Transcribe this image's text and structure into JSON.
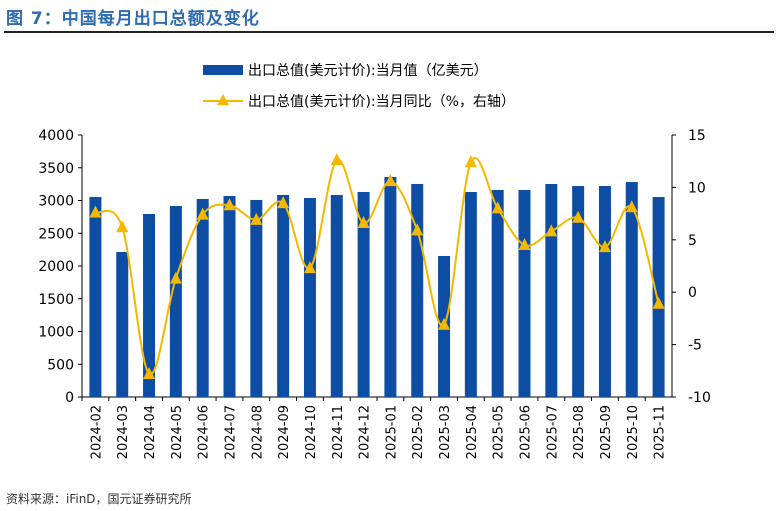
{
  "title": "图 7：中国每月出口总额及变化",
  "footer": "资料来源：iFinD，国元证券研究所",
  "chart_data": {
    "type": "bar+line",
    "categories": [
      "2024-02",
      "2024-03",
      "2024-04",
      "2024-05",
      "2024-06",
      "2024-07",
      "2024-08",
      "2024-09",
      "2024-10",
      "2024-11",
      "2024-12",
      "2025-01",
      "2025-02",
      "2025-03",
      "2025-04",
      "2025-05",
      "2025-06",
      "2025-07",
      "2025-08",
      "2025-09",
      "2025-10",
      "2025-11"
    ],
    "series": [
      {
        "name": "出口总值(美元计价):当月值（亿美元）",
        "type": "bar",
        "axis": "left",
        "color": "#0E4DA4",
        "values": [
          3053,
          2214,
          2794,
          2916,
          3023,
          3069,
          3008,
          3084,
          3038,
          3084,
          3130,
          3359,
          3252,
          2153,
          3130,
          3160,
          3160,
          3252,
          3221,
          3221,
          3282,
          3053
        ]
      },
      {
        "name": "出口总值(美元计价):当月同比（%，右轴）",
        "type": "line",
        "axis": "right",
        "color": "#F5B800",
        "marker": "triangle",
        "values": [
          7.6,
          6.2,
          -7.8,
          1.3,
          7.4,
          8.3,
          6.9,
          8.5,
          2.3,
          12.6,
          6.6,
          10.6,
          5.9,
          -3.1,
          12.4,
          8.0,
          4.5,
          5.8,
          7.1,
          4.3,
          8.1,
          -1.1
        ]
      }
    ],
    "left_axis": {
      "ylim": [
        0,
        4000
      ],
      "ticks": [
        "0",
        "500",
        "1000",
        "1500",
        "2000",
        "2500",
        "3000",
        "3500",
        "4000"
      ]
    },
    "right_axis": {
      "ylim": [
        -10,
        15
      ],
      "ticks": [
        "-10",
        "-5",
        "0",
        "5",
        "10",
        "15"
      ]
    },
    "grid": false,
    "legend": "top"
  }
}
